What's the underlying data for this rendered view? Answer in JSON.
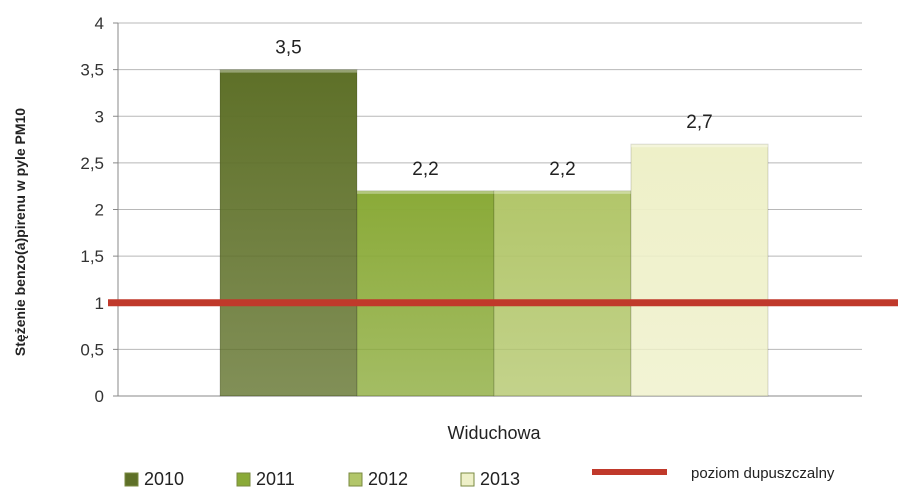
{
  "chart_data": {
    "type": "bar",
    "categories": [
      "Widuchowa"
    ],
    "series": [
      {
        "name": "2010",
        "values": [
          3.5
        ],
        "label": "3,5",
        "color": "#5e7028"
      },
      {
        "name": "2011",
        "values": [
          2.2
        ],
        "label": "2,2",
        "color": "#8aaa38"
      },
      {
        "name": "2012",
        "values": [
          2.2
        ],
        "label": "2,2",
        "color": "#b2c66a"
      },
      {
        "name": "2013",
        "values": [
          2.7
        ],
        "label": "2,7",
        "color": "#eef0c8"
      }
    ],
    "reference_line": {
      "name": "poziom dupuszczalny",
      "value": 1,
      "color": "#c0392b"
    },
    "title": "",
    "xlabel": "",
    "ylabel": "Stężenie benzo(a)pirenu w pyle PM10",
    "ylim": [
      0,
      4
    ],
    "yticks": [
      0,
      0.5,
      1,
      1.5,
      2,
      2.5,
      3,
      3.5,
      4
    ],
    "ytick_labels": [
      "0",
      "0,5",
      "1",
      "1,5",
      "2",
      "2,5",
      "3",
      "3,5",
      "4"
    ],
    "grid": true,
    "legend_position": "bottom"
  }
}
